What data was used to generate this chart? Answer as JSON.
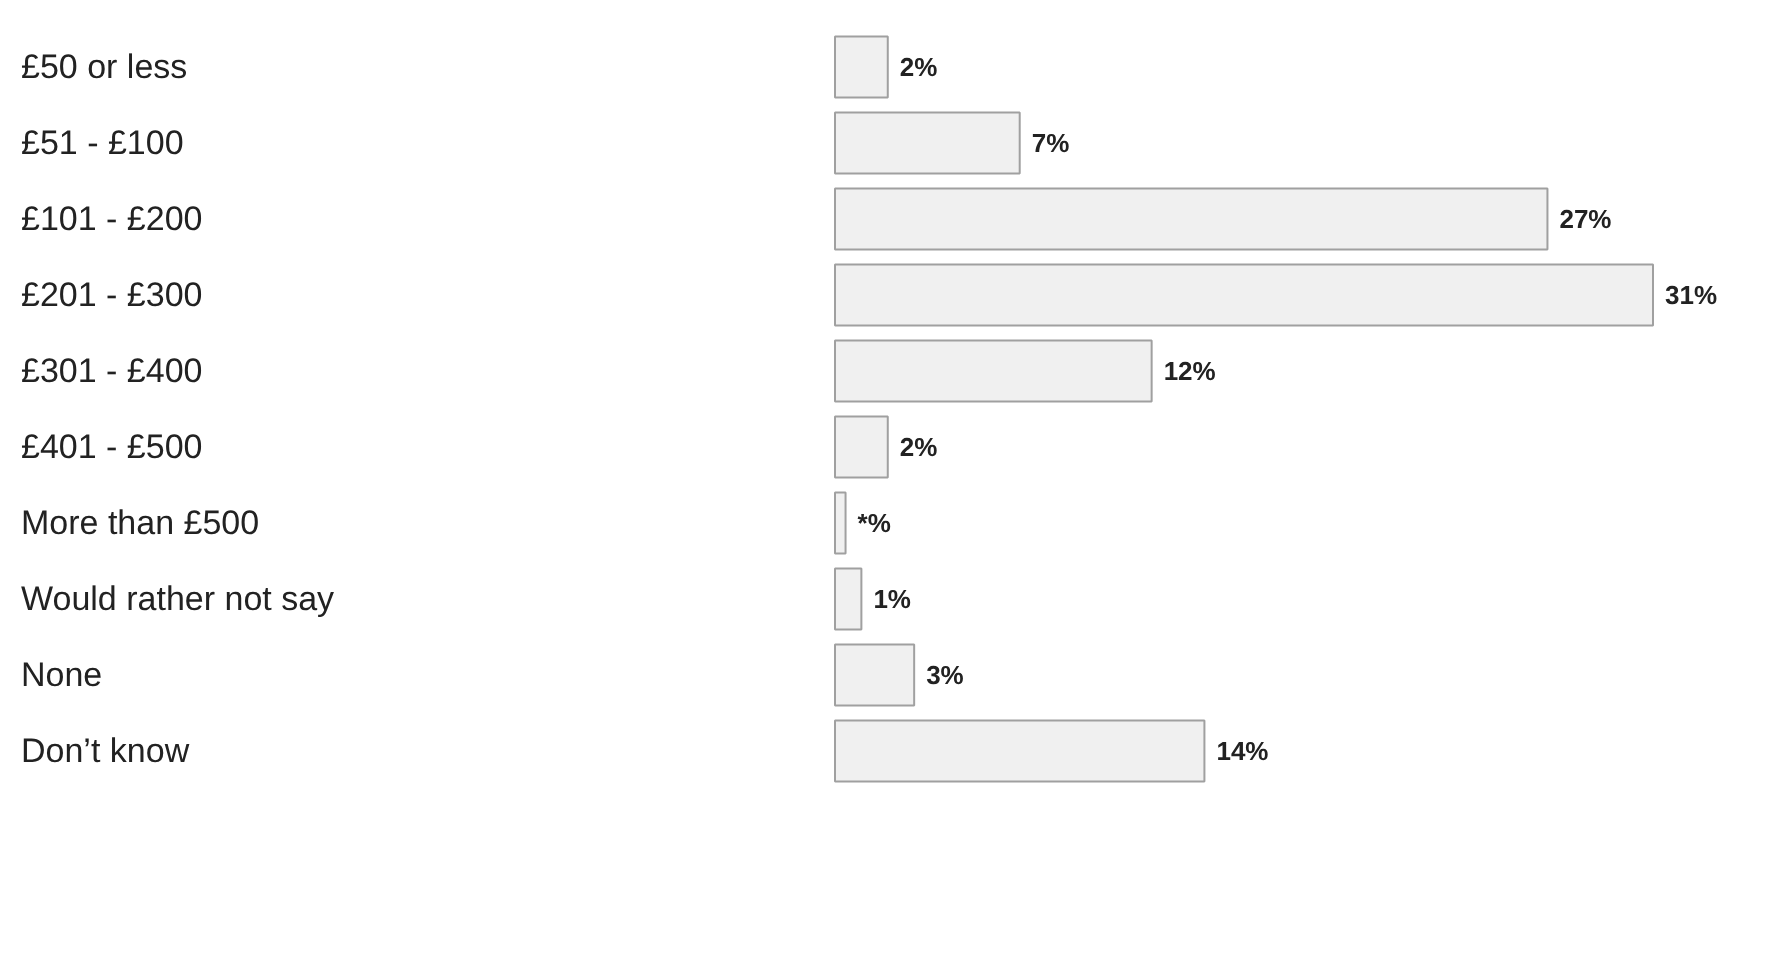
{
  "chart_data": {
    "type": "bar",
    "orientation": "horizontal",
    "categories": [
      "£50 or less",
      "£51 - £100",
      "£101 - £200",
      "£201 - £300",
      "£301 - £400",
      "£401 - £500",
      "More than £500",
      "Would rather not say",
      "None",
      "Don’t know"
    ],
    "values": [
      2,
      7,
      27,
      31,
      12,
      2,
      0.4,
      1,
      3,
      14
    ],
    "value_labels": [
      "2%",
      "7%",
      "27%",
      "31%",
      "12%",
      "2%",
      "*%",
      "1%",
      "3%",
      "14%"
    ],
    "color": "#f0f0f0",
    "grid": false
  }
}
